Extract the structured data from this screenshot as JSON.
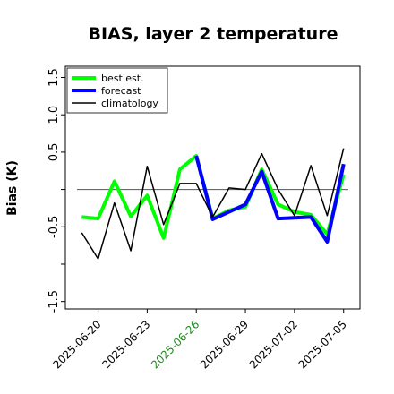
{
  "chart_data": {
    "type": "line",
    "title": "BIAS, layer 2 temperature",
    "xlabel": "",
    "ylabel": "Bias (K)",
    "ylim": [
      -1.6,
      1.65
    ],
    "yticks": [
      -1.5,
      -1.0,
      -0.5,
      0.0,
      0.5,
      1.0,
      1.5
    ],
    "ytick_labels": [
      "-1.5",
      "",
      "-0.5",
      "",
      "0.5",
      "1.0",
      "1.5"
    ],
    "x": [
      "2025-06-19",
      "2025-06-20",
      "2025-06-21",
      "2025-06-22",
      "2025-06-23",
      "2025-06-24",
      "2025-06-25",
      "2025-06-26",
      "2025-06-27",
      "2025-06-28",
      "2025-06-29",
      "2025-06-30",
      "2025-07-01",
      "2025-07-02",
      "2025-07-03",
      "2025-07-04",
      "2025-07-05"
    ],
    "xlim": [
      "2025-06-18",
      "2025-07-06"
    ],
    "xticks": [
      "2025-06-20",
      "2025-06-23",
      "2025-06-26",
      "2025-06-29",
      "2025-07-02",
      "2025-07-05"
    ],
    "xtick_colors": [
      "#000000",
      "#000000",
      "#228B22",
      "#000000",
      "#000000",
      "#000000"
    ],
    "hline": 0.0,
    "grid": false,
    "legend_position": "top-left",
    "series": [
      {
        "name": "best est.",
        "color": "#00ff00",
        "values": [
          -0.37,
          -0.39,
          0.11,
          -0.36,
          -0.08,
          -0.65,
          0.27,
          0.45,
          -0.39,
          -0.28,
          -0.23,
          0.27,
          -0.2,
          -0.3,
          -0.34,
          -0.6,
          0.2
        ]
      },
      {
        "name": "forecast",
        "color": "#0000ff",
        "values": [
          null,
          null,
          null,
          null,
          null,
          null,
          null,
          0.45,
          -0.4,
          -0.3,
          -0.2,
          0.24,
          -0.39,
          -0.38,
          -0.37,
          -0.7,
          0.34
        ]
      },
      {
        "name": "climatology",
        "color": "#000000",
        "values": [
          -0.58,
          -0.93,
          -0.18,
          -0.82,
          0.31,
          -0.47,
          0.08,
          0.08,
          -0.37,
          0.02,
          0.0,
          0.48,
          0.0,
          -0.35,
          0.32,
          -0.35,
          0.55
        ]
      }
    ]
  }
}
